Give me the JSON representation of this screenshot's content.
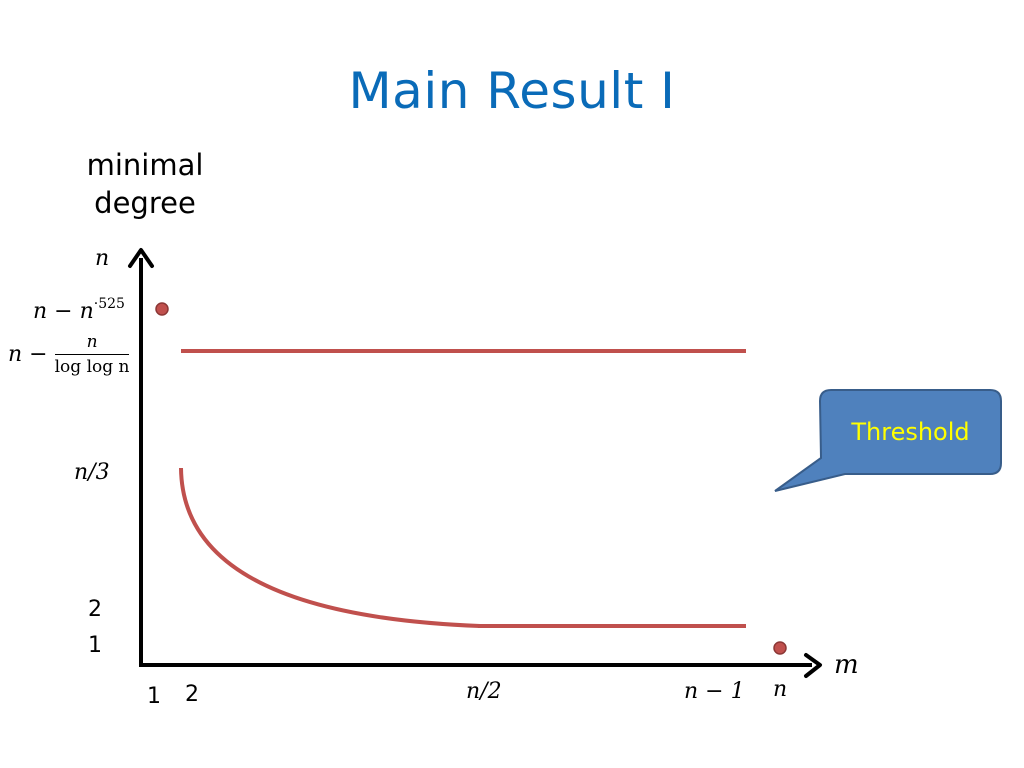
{
  "title": "Main Result I",
  "y_axis_label": [
    "minimal",
    "degree"
  ],
  "x_axis_label": "m",
  "y_ticks": {
    "n": "n",
    "n_minus_power": "n − n",
    "power": "·525",
    "n_minus_frac_prefix": "n −",
    "frac_num": "n",
    "frac_den": "log log n",
    "n_over_3": "n/3",
    "two": "2",
    "one": "1"
  },
  "x_ticks": {
    "one": "1",
    "two": "2",
    "n_over_2": "n/2",
    "n_minus_1": "n − 1",
    "n": "n"
  },
  "callout": {
    "label": "Threshold",
    "fill": "#4f81bd",
    "border": "#385d8a",
    "text_color": "#ffff00"
  },
  "colors": {
    "title": "#0a6bb8",
    "curve": "#c0504d",
    "axis": "#000000"
  }
}
